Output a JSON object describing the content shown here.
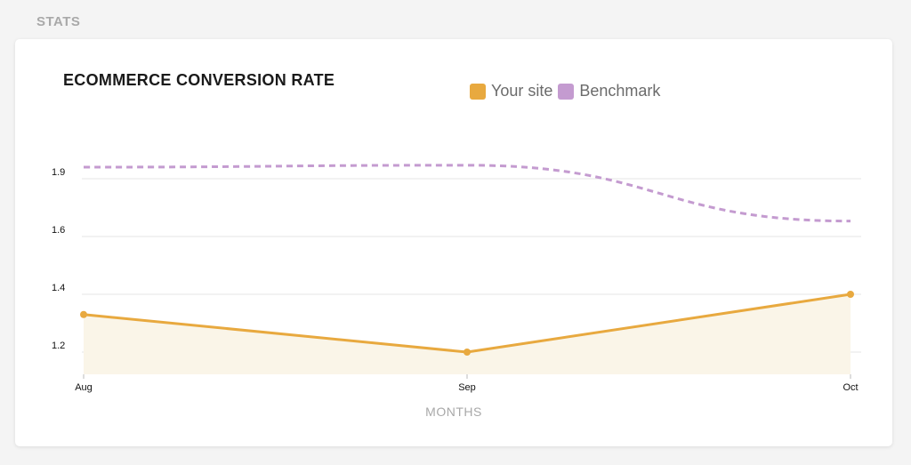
{
  "page": {
    "section_label": "STATS"
  },
  "colors": {
    "your_site": "#e8a93f",
    "your_site_fill": "#faf5e8",
    "benchmark": "#c49bd0",
    "grid": "#e6e6e6"
  },
  "chart_data": {
    "type": "line",
    "title": "ECOMMERCE CONVERSION RATE",
    "xlabel": "MONTHS",
    "ylabel": "",
    "categories": [
      "Aug",
      "Sep",
      "Oct"
    ],
    "y_ticks": [
      {
        "value": 1.2,
        "label": "1.2"
      },
      {
        "value": 1.4,
        "label": "1.4"
      },
      {
        "value": 1.6,
        "label": "1.6"
      },
      {
        "value": 1.9,
        "label": "1.9"
      }
    ],
    "series": [
      {
        "name": "Your site",
        "values": [
          1.33,
          1.2,
          1.4
        ],
        "style": "solid",
        "markers": true,
        "area": true
      },
      {
        "name": "Benchmark",
        "values": [
          1.96,
          1.97,
          1.68
        ],
        "style": "dashed",
        "markers": false,
        "area": false
      }
    ],
    "grid": true,
    "legend_position": "top"
  }
}
